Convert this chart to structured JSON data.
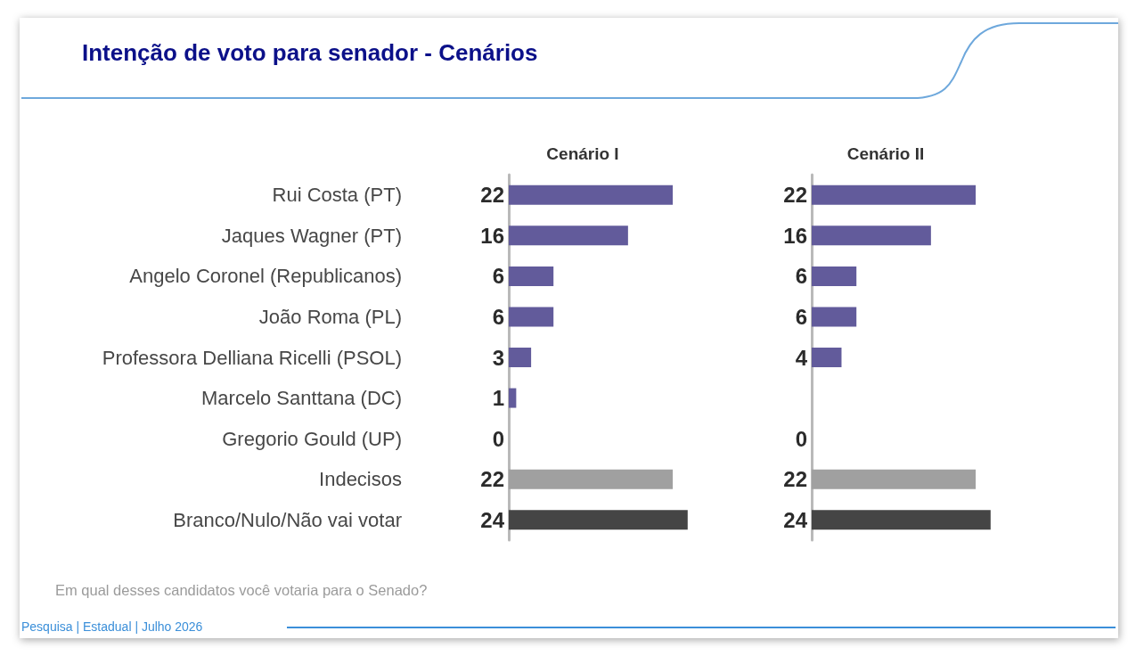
{
  "chart_data": [
    {
      "type": "bar",
      "orientation": "horizontal",
      "title": "Intenção de voto para senador - Cenários",
      "subtitle": "Cenário I",
      "categories": [
        "Rui Costa (PT)",
        "Jaques Wagner (PT)",
        "Angelo Coronel (Republicanos)",
        "João Roma (PL)",
        "Professora Delliana Ricelli (PSOL)",
        "Marcelo Santtana (DC)",
        "Gregorio Gould (UP)",
        "Indecisos",
        "Branco/Nulo/Não vai votar"
      ],
      "values": [
        22,
        16,
        6,
        6,
        3,
        1,
        0,
        22,
        24
      ],
      "colors": [
        "#625b9b",
        "#625b9b",
        "#625b9b",
        "#625b9b",
        "#625b9b",
        "#625b9b",
        "#625b9b",
        "#a0a0a0",
        "#454545"
      ],
      "data_labels": true,
      "tick_labels": "y",
      "annotations": [
        "Em qual desses candidatos você votaria para o Senado?",
        "Pesquisa | Estadual | Julho 2026"
      ]
    },
    {
      "type": "bar",
      "orientation": "horizontal",
      "subtitle": "Cenário II",
      "categories": [
        null,
        null,
        null,
        null,
        null,
        null,
        null,
        null,
        null
      ],
      "values": [
        22,
        16,
        6,
        6,
        4,
        null,
        0,
        22,
        24
      ],
      "colors": [
        "#625b9b",
        "#625b9b",
        "#625b9b",
        "#625b9b",
        "#625b9b",
        "#625b9b",
        "#625b9b",
        "#a0a0a0",
        "#454545"
      ],
      "data_labels": true,
      "tick_labels": false
    }
  ]
}
